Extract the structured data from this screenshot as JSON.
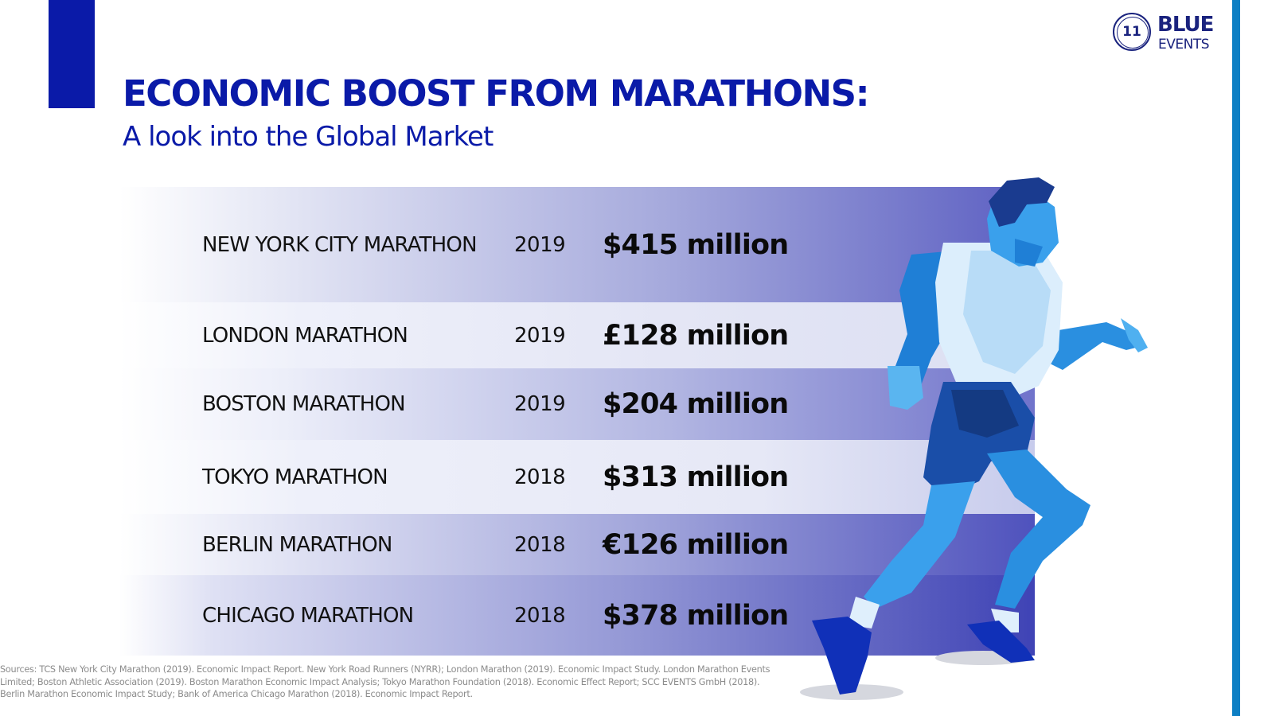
{
  "header": {
    "title": "ECONOMIC BOOST FROM MARATHONS:",
    "subtitle": "A look into the Global Market"
  },
  "logo": {
    "number": "11",
    "word1": "BLUE",
    "word2": "EVENTS"
  },
  "rows": [
    {
      "name": "NEW YORK CITY MARATHON",
      "year": "2019",
      "value": "$415 million"
    },
    {
      "name": "LONDON MARATHON",
      "year": "2019",
      "value": "£128 million"
    },
    {
      "name": "BOSTON MARATHON",
      "year": "2019",
      "value": "$204 million"
    },
    {
      "name": "TOKYO MARATHON",
      "year": "2018",
      "value": "$313 million"
    },
    {
      "name": "BERLIN MARATHON",
      "year": "2018",
      "value": "€126 million"
    },
    {
      "name": "CHICAGO MARATHON",
      "year": "2018",
      "value": "$378 million"
    }
  ],
  "sources": "Sources: TCS New York City Marathon (2019). Economic Impact Report. New York Road Runners (NYRR); London Marathon (2019). Economic Impact Study. London Marathon Events Limited; Boston Athletic Association (2019). Boston Marathon Economic Impact Analysis; Tokyo Marathon Foundation (2018). Economic Effect Report; SCC EVENTS GmbH (2018). Berlin Marathon Economic Impact Study; Bank of America Chicago Marathon (2018). Economic Impact Report.",
  "colors": {
    "primary": "#0a1aa8",
    "stripe": "#0d7fc4",
    "band_dark": "#5a5cc0",
    "band_light": "#eef0fa"
  },
  "icons": {
    "logo": "blue-events-logo",
    "illustration": "runner-illustration"
  }
}
